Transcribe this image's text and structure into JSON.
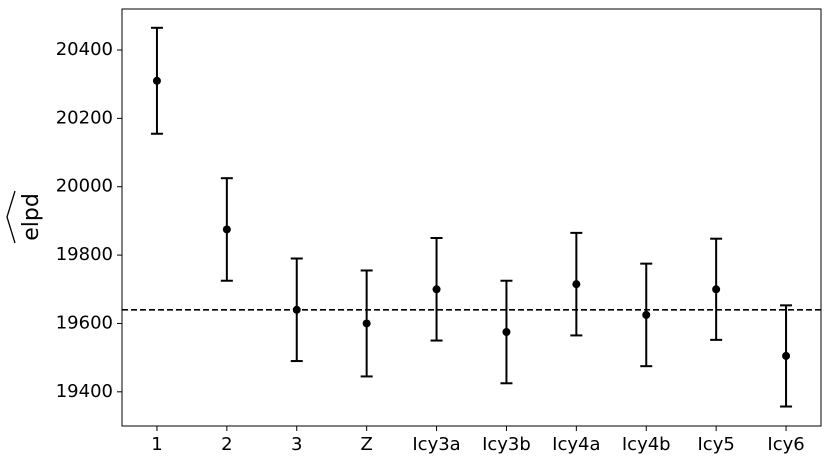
{
  "chart_data": {
    "type": "errorbar",
    "y_label": "elpd",
    "categories": [
      "1",
      "2",
      "3",
      "Z",
      "Icy3a",
      "Icy3b",
      "Icy4a",
      "Icy4b",
      "Icy5",
      "Icy6"
    ],
    "values": [
      20310,
      19875,
      19640,
      19600,
      19700,
      19575,
      19715,
      19625,
      19700,
      19505
    ],
    "errors": [
      155,
      150,
      150,
      155,
      150,
      150,
      150,
      150,
      148,
      148
    ],
    "color": "#000000",
    "reference_line": 19640,
    "ylim": [
      19300,
      20520
    ],
    "yticks": [
      19400,
      19600,
      19800,
      20000,
      20200,
      20400
    ]
  }
}
